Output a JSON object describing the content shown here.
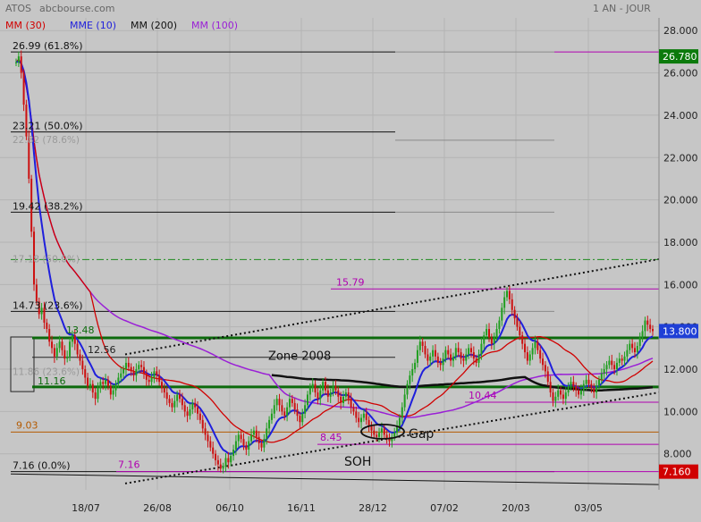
{
  "chart_data": {
    "type": "candlestick",
    "header": {
      "symbol": "ATOS",
      "source": "abcbourse.com",
      "period": "1 AN - JOUR"
    },
    "legend": [
      {
        "label": "MM (30)",
        "color": "#d00000"
      },
      {
        "label": "MME (10)",
        "color": "#1f1fdc"
      },
      {
        "label": "MM (200)",
        "color": "#111111"
      },
      {
        "label": "MM (100)",
        "color": "#9a1fd6"
      }
    ],
    "y_axis": {
      "min": 6.3,
      "max": 28.6,
      "ticks": [
        "28.000",
        "26.000",
        "24.000",
        "22.000",
        "20.000",
        "18.000",
        "16.000",
        "14.000",
        "12.000",
        "10.000",
        "8.000"
      ]
    },
    "x_axis": {
      "ticks": [
        "18/07",
        "26/08",
        "06/10",
        "16/11",
        "28/12",
        "07/02",
        "20/03",
        "03/05"
      ]
    },
    "price_badges": [
      {
        "value": "26.780",
        "bg": "#0c7a0c",
        "fg": "#ffffff"
      },
      {
        "value": "13.800",
        "bg": "#1f3fd6",
        "fg": "#ffffff"
      },
      {
        "value": "7.160",
        "bg": "#d00000",
        "fg": "#ffffff"
      }
    ],
    "fibonacci_levels": [
      {
        "label": "26.99  (61.8%)",
        "value": 26.99
      },
      {
        "label": "23.21  (50.0%)",
        "value": 23.21
      },
      {
        "label": "19.42  (38.2%)",
        "value": 19.42
      },
      {
        "label": "14.73  (23.6%)",
        "value": 14.73
      },
      {
        "label": "7.16  (0.0%)",
        "value": 7.16
      }
    ],
    "faded_levels": [
      {
        "label": "22.82  (78.6%)",
        "value": 22.82
      },
      {
        "label": "17.18  (50.0%)",
        "value": 17.18
      },
      {
        "label": "11.86  (23.6%)",
        "value": 11.86
      }
    ],
    "horizontal_levels": [
      {
        "label": "13.48",
        "value": 13.48,
        "color": "#0c6a0c"
      },
      {
        "label": "12.56",
        "value": 12.56,
        "color": "#222222"
      },
      {
        "label": "11.16",
        "value": 11.16,
        "color": "#0c6a0c"
      },
      {
        "label": "9.03",
        "value": 9.03,
        "color": "#b45a00"
      },
      {
        "label": "15.79",
        "value": 15.79,
        "color": "#b000b0"
      },
      {
        "label": "10.44",
        "value": 10.44,
        "color": "#b000b0"
      },
      {
        "label": "8.45",
        "value": 8.45,
        "color": "#b000b0"
      },
      {
        "label": "7.16",
        "value": 7.16,
        "color": "#b000b0"
      }
    ],
    "annotations": [
      {
        "text": "Zone 2008"
      },
      {
        "text": "Gap"
      },
      {
        "text": "SOH"
      }
    ],
    "series_close": [
      26.5,
      26.78,
      26.0,
      24.5,
      23.0,
      21.0,
      18.5,
      16.0,
      15.2,
      14.6,
      14.9,
      14.2,
      13.9,
      13.3,
      13.0,
      12.6,
      13.0,
      13.3,
      12.9,
      12.5,
      12.6,
      13.3,
      13.6,
      13.2,
      12.7,
      12.4,
      12.0,
      11.6,
      11.2,
      11.3,
      10.9,
      10.6,
      11.1,
      11.4,
      11.3,
      11.5,
      11.2,
      10.8,
      11.0,
      11.3,
      11.6,
      11.8,
      12.0,
      12.3,
      12.1,
      11.9,
      11.7,
      12.0,
      12.2,
      12.1,
      11.8,
      11.5,
      11.4,
      11.6,
      11.9,
      11.7,
      11.4,
      11.1,
      10.9,
      10.6,
      10.4,
      10.2,
      10.5,
      10.8,
      10.6,
      10.3,
      10.0,
      9.8,
      10.1,
      10.4,
      10.2,
      9.9,
      9.6,
      9.2,
      8.9,
      8.6,
      8.3,
      8.0,
      7.7,
      7.5,
      7.3,
      7.4,
      7.8,
      7.6,
      7.9,
      8.2,
      8.6,
      8.9,
      8.7,
      8.4,
      8.2,
      8.6,
      8.9,
      9.1,
      8.8,
      8.5,
      8.3,
      8.7,
      9.2,
      9.6,
      9.9,
      10.3,
      10.6,
      10.3,
      10.0,
      9.8,
      10.2,
      10.6,
      10.4,
      10.1,
      9.8,
      9.5,
      9.9,
      10.3,
      10.8,
      11.1,
      11.3,
      10.9,
      10.6,
      11.0,
      11.4,
      11.0,
      10.7,
      10.9,
      11.2,
      11.0,
      10.7,
      10.4,
      10.7,
      10.9,
      10.6,
      10.2,
      10.0,
      9.7,
      9.5,
      9.7,
      9.9,
      9.6,
      9.3,
      9.1,
      8.9,
      8.8,
      9.0,
      9.2,
      8.9,
      8.7,
      8.6,
      8.8,
      9.0,
      9.3,
      9.7,
      10.2,
      10.8,
      11.3,
      11.7,
      12.0,
      12.3,
      12.9,
      13.3,
      13.1,
      12.7,
      12.4,
      12.6,
      12.9,
      12.6,
      12.3,
      12.2,
      12.5,
      12.9,
      12.7,
      12.4,
      12.6,
      13.0,
      12.8,
      12.5,
      12.4,
      12.7,
      13.0,
      12.8,
      12.5,
      12.3,
      12.7,
      13.2,
      13.6,
      13.9,
      13.5,
      13.2,
      13.5,
      13.9,
      14.3,
      14.9,
      15.4,
      15.7,
      15.3,
      14.8,
      14.4,
      14.0,
      13.6,
      13.2,
      12.8,
      12.4,
      12.7,
      13.0,
      13.3,
      12.9,
      12.5,
      12.2,
      11.9,
      11.4,
      10.9,
      10.5,
      10.7,
      11.0,
      10.8,
      10.6,
      10.9,
      11.2,
      11.4,
      11.2,
      11.0,
      10.8,
      11.0,
      11.3,
      11.5,
      11.3,
      11.1,
      10.9,
      11.2,
      11.5,
      11.8,
      12.0,
      12.2,
      12.4,
      12.2,
      12.0,
      12.3,
      12.5,
      12.4,
      12.6,
      12.9,
      13.2,
      13.0,
      12.8,
      13.1,
      13.5,
      13.8,
      14.3,
      14.1,
      13.9,
      13.8
    ]
  }
}
